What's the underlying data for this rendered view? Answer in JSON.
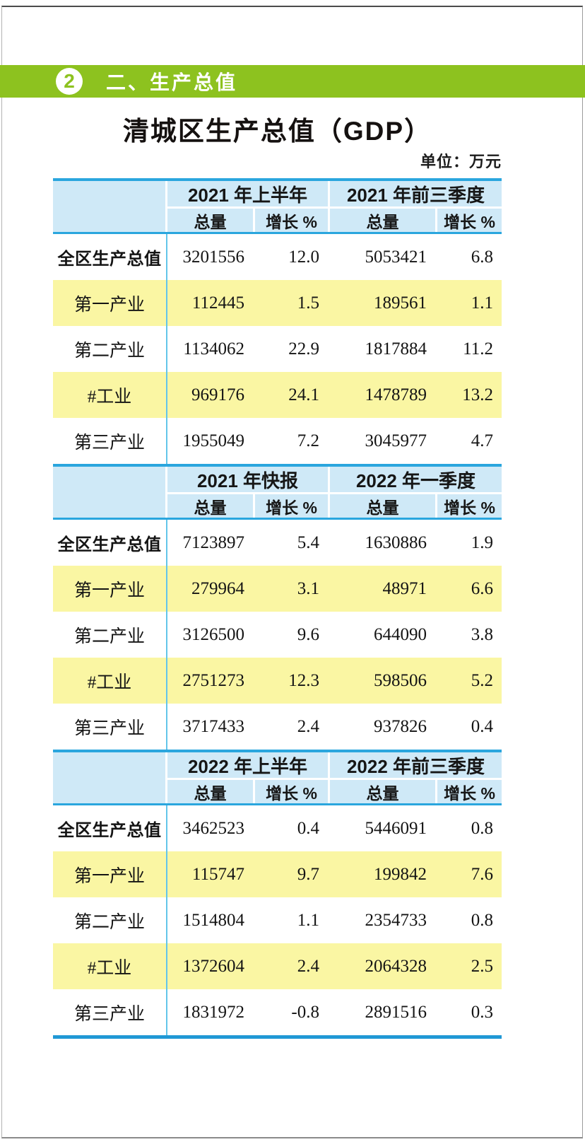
{
  "page": {
    "section_number": "2",
    "section_title": "二、生产总值",
    "title": "清城区生产总值（GDP）",
    "unit_label": "单位：万元"
  },
  "table": {
    "col_total": "总量",
    "col_growth": "增长 %",
    "sections": [
      {
        "period_left": "2021 年上半年",
        "period_right": "2021 年前三季度",
        "rows": [
          {
            "label": "全区生产总值",
            "v1": "3201556",
            "v2": "12.0",
            "v3": "5053421",
            "v4": "6.8"
          },
          {
            "label": "第一产业",
            "v1": "112445",
            "v2": "1.5",
            "v3": "189561",
            "v4": "1.1"
          },
          {
            "label": "第二产业",
            "v1": "1134062",
            "v2": "22.9",
            "v3": "1817884",
            "v4": "11.2"
          },
          {
            "label": "#工业",
            "v1": "969176",
            "v2": "24.1",
            "v3": "1478789",
            "v4": "13.2"
          },
          {
            "label": "第三产业",
            "v1": "1955049",
            "v2": "7.2",
            "v3": "3045977",
            "v4": "4.7"
          }
        ]
      },
      {
        "period_left": "2021 年快报",
        "period_right": "2022 年一季度",
        "rows": [
          {
            "label": "全区生产总值",
            "v1": "7123897",
            "v2": "5.4",
            "v3": "1630886",
            "v4": "1.9"
          },
          {
            "label": "第一产业",
            "v1": "279964",
            "v2": "3.1",
            "v3": "48971",
            "v4": "6.6"
          },
          {
            "label": "第二产业",
            "v1": "3126500",
            "v2": "9.6",
            "v3": "644090",
            "v4": "3.8"
          },
          {
            "label": "#工业",
            "v1": "2751273",
            "v2": "12.3",
            "v3": "598506",
            "v4": "5.2"
          },
          {
            "label": "第三产业",
            "v1": "3717433",
            "v2": "2.4",
            "v3": "937826",
            "v4": "0.4"
          }
        ]
      },
      {
        "period_left": "2022 年上半年",
        "period_right": "2022 年前三季度",
        "rows": [
          {
            "label": "全区生产总值",
            "v1": "3462523",
            "v2": "0.4",
            "v3": "5446091",
            "v4": "0.8"
          },
          {
            "label": "第一产业",
            "v1": "115747",
            "v2": "9.7",
            "v3": "199842",
            "v4": "7.6"
          },
          {
            "label": "第二产业",
            "v1": "1514804",
            "v2": "1.1",
            "v3": "2354733",
            "v4": "0.8"
          },
          {
            "label": "#工业",
            "v1": "1372604",
            "v2": "2.4",
            "v3": "2064328",
            "v4": "2.5"
          },
          {
            "label": "第三产业",
            "v1": "1831972",
            "v2": "-0.8",
            "v3": "2891516",
            "v4": "0.3"
          }
        ]
      }
    ]
  },
  "colors": {
    "accent_green": "#8dc21f",
    "header_blue": "#cfe9f7",
    "line_blue": "#2aa6de",
    "divider_blue": "#63c5ea",
    "row_yellow": "#faf6a3"
  }
}
